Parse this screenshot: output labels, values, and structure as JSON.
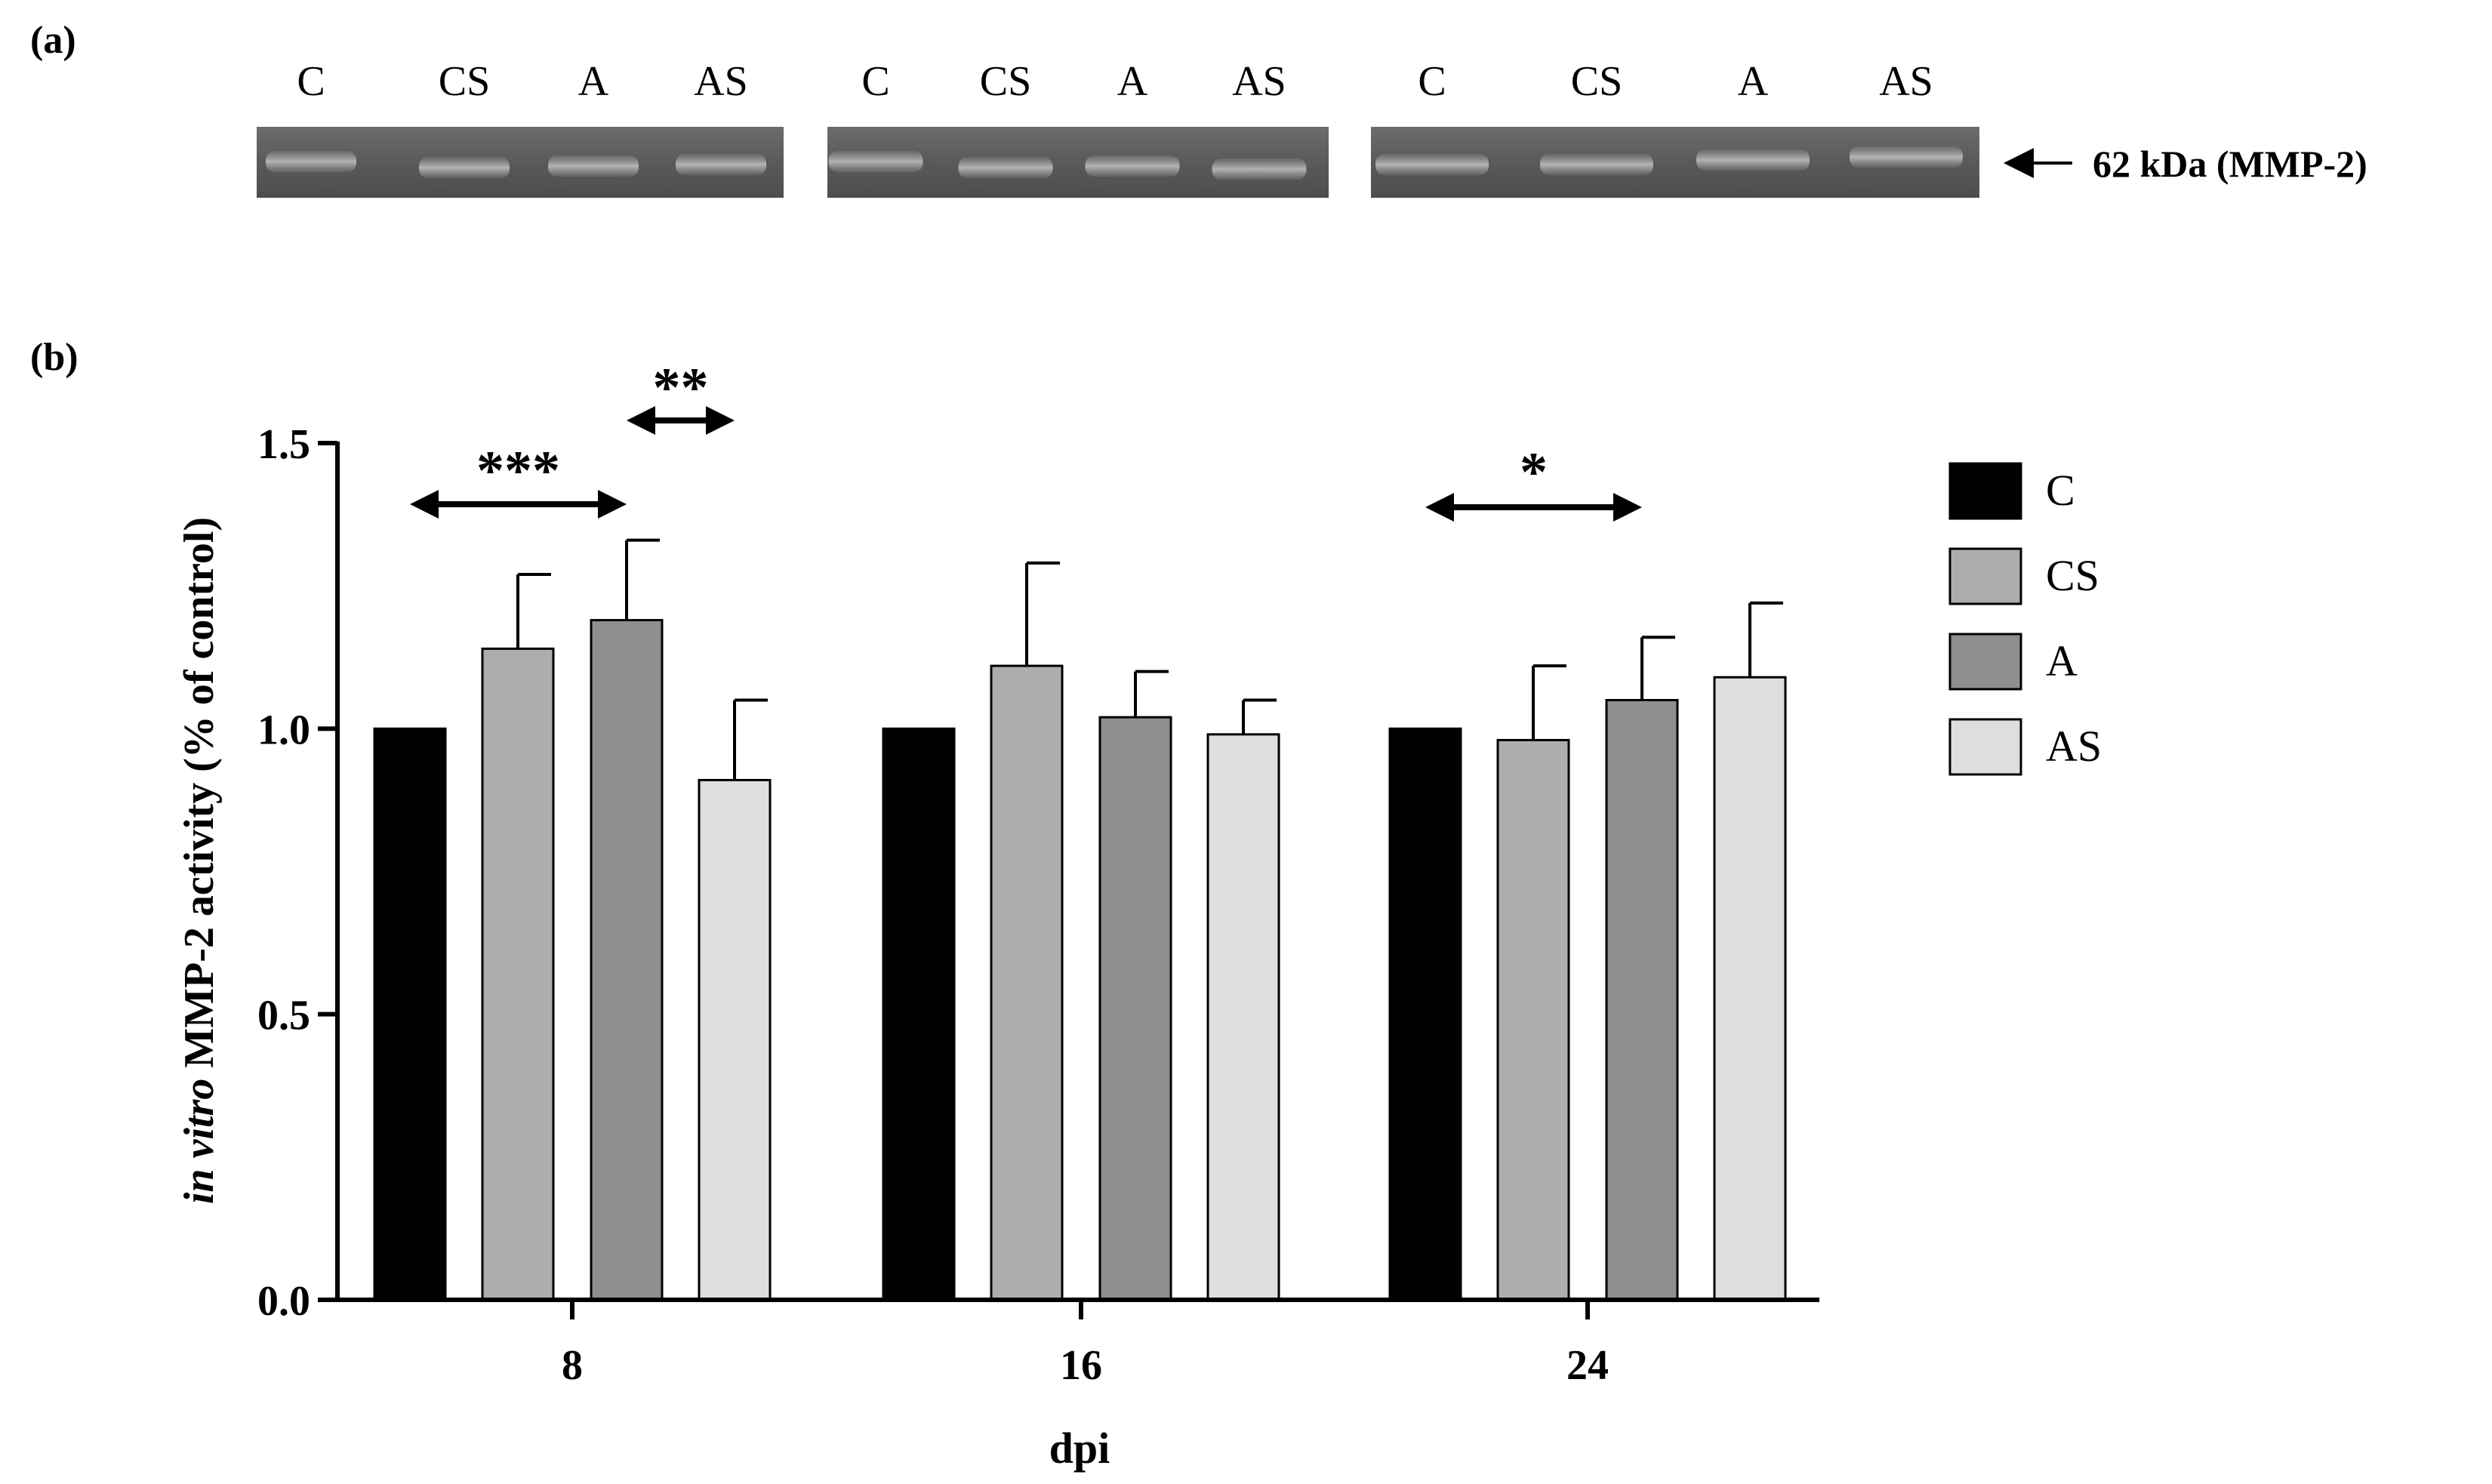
{
  "panel_a": {
    "label": "(a)",
    "lanes": [
      "C",
      "CS",
      "A",
      "AS",
      "C",
      "CS",
      "A",
      "AS",
      "C",
      "CS",
      "A",
      "AS"
    ],
    "band_label": "62 kDa (MMP-2)"
  },
  "panel_b": {
    "label": "(b)"
  },
  "chart_data": {
    "type": "bar",
    "title": "",
    "xlabel": "dpi",
    "ylabel_italic": "in vitro",
    "ylabel_rest": " MMP-2 activity (% of control)",
    "categories": [
      "8",
      "16",
      "24"
    ],
    "yticks": [
      "0.0",
      "0.5",
      "1.0",
      "1.5"
    ],
    "ylim": [
      0,
      1.5
    ],
    "series": [
      {
        "name": "C",
        "color": "#000000",
        "values": [
          1.0,
          1.0,
          1.0
        ],
        "errors": [
          0.0,
          0.0,
          0.0
        ]
      },
      {
        "name": "CS",
        "color": "#adadad",
        "values": [
          1.14,
          1.11,
          0.98
        ],
        "errors": [
          0.13,
          0.18,
          0.13
        ]
      },
      {
        "name": "A",
        "color": "#8f8f8f",
        "values": [
          1.19,
          1.02,
          1.05
        ],
        "errors": [
          0.14,
          0.08,
          0.11
        ]
      },
      {
        "name": "AS",
        "color": "#dedede",
        "values": [
          0.91,
          0.99,
          1.09
        ],
        "errors": [
          0.14,
          0.06,
          0.13
        ]
      }
    ],
    "significance": [
      {
        "label": "***",
        "group": "8",
        "from": "C",
        "to": "A"
      },
      {
        "label": "**",
        "group": "8",
        "from": "A",
        "to": "AS"
      },
      {
        "label": "*",
        "group": "24",
        "from": "C",
        "to": "A"
      }
    ],
    "legend_position": "right"
  }
}
